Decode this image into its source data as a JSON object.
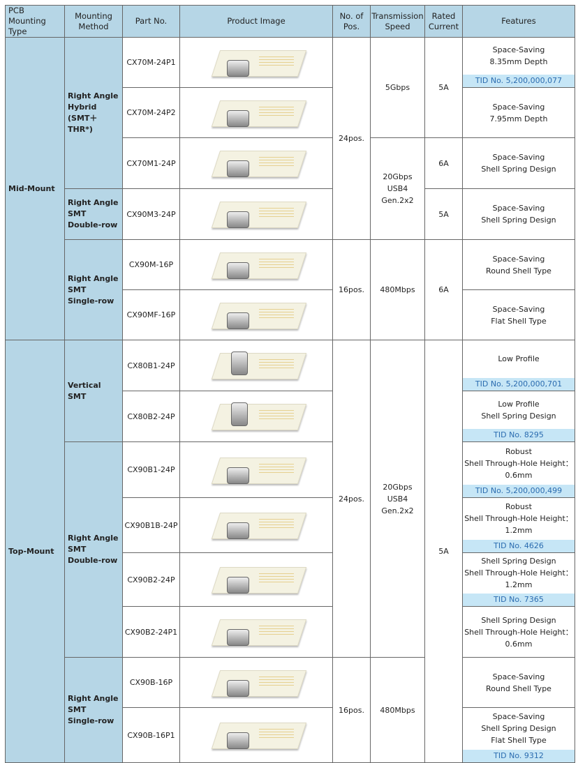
{
  "headers": [
    "PCB Mounting Type",
    "Mounting Method",
    "Part No.",
    "Product Image",
    "No. of Pos.",
    "Transmission Speed",
    "Rated Current",
    "Features"
  ],
  "types": [
    {
      "label": "Mid-Mount",
      "rows": 6
    },
    {
      "label": "Top-Mount",
      "rows": 8
    }
  ],
  "methods": [
    {
      "label": "Right Angle Hybrid (SMT＋THR*)",
      "lines": [
        "Right Angle",
        "Hybrid",
        "(SMT＋THR*)"
      ],
      "rows": 3
    },
    {
      "lines": [
        "Right Angle",
        "SMT",
        "Double-row"
      ],
      "rows": 1
    },
    {
      "lines": [
        "Right Angle",
        "SMT",
        "Single-row"
      ],
      "rows": 2
    },
    {
      "lines": [
        "Vertical",
        "SMT"
      ],
      "rows": 2
    },
    {
      "lines": [
        "Right Angle",
        "SMT",
        "Double-row"
      ],
      "rows": 4
    },
    {
      "lines": [
        "Right Angle",
        "SMT",
        "Single-row"
      ],
      "rows": 2
    }
  ],
  "positions": [
    {
      "label": "24pos.",
      "rows": 4
    },
    {
      "label": "16pos.",
      "rows": 2
    },
    {
      "label": "24pos.",
      "rows": 6
    },
    {
      "label": "16pos.",
      "rows": 2
    }
  ],
  "speeds": [
    {
      "lines": [
        "5Gbps"
      ],
      "rows": 2
    },
    {
      "lines": [
        "20Gbps",
        "USB4",
        "Gen.2x2"
      ],
      "rows": 2
    },
    {
      "lines": [
        "480Mbps"
      ],
      "rows": 2
    },
    {
      "lines": [
        "20Gbps",
        "USB4",
        "Gen.2x2"
      ],
      "rows": 6
    },
    {
      "lines": [
        "480Mbps"
      ],
      "rows": 2
    }
  ],
  "currents": [
    {
      "label": "5A",
      "rows": 2
    },
    {
      "label": "6A",
      "rows": 1
    },
    {
      "label": "5A",
      "rows": 1
    },
    {
      "label": "6A",
      "rows": 2
    },
    {
      "label": "5A",
      "rows": 8
    }
  ],
  "rows": [
    {
      "part": "CX70M-24P1",
      "features": [
        "Space-Saving",
        "8.35mm Depth"
      ],
      "tid": "TID No. 5,200,000,077"
    },
    {
      "part": "CX70M-24P2",
      "features": [
        "Space-Saving",
        "7.95mm Depth"
      ]
    },
    {
      "part": "CX70M1-24P",
      "features": [
        "Space-Saving",
        "Shell Spring Design"
      ]
    },
    {
      "part": "CX90M3-24P",
      "features": [
        "Space-Saving",
        "Shell Spring Design"
      ]
    },
    {
      "part": "CX90M-16P",
      "features": [
        "Space-Saving",
        "Round Shell Type"
      ]
    },
    {
      "part": "CX90MF-16P",
      "features": [
        "Space-Saving",
        "Flat Shell Type"
      ]
    },
    {
      "part": "CX80B1-24P",
      "features": [
        "Low Profile"
      ],
      "tid": "TID No. 5,200,000,701",
      "vertical": true
    },
    {
      "part": "CX80B2-24P",
      "features": [
        "Low Profile",
        "Shell Spring Design"
      ],
      "tid": "TID No. 8295",
      "vertical": true
    },
    {
      "part": "CX90B1-24P",
      "features": [
        "Robust",
        "Shell Through-Hole Height：",
        "0.6mm"
      ],
      "tid": "TID No. 5,200,000,499"
    },
    {
      "part": "CX90B1B-24P",
      "features": [
        "Robust",
        "Shell Through-Hole Height：",
        "1.2mm"
      ],
      "tid": "TID No. 4626"
    },
    {
      "part": "CX90B2-24P",
      "features": [
        "Shell Spring Design",
        "Shell Through-Hole Height：",
        "1.2mm"
      ],
      "tid": "TID No. 7365"
    },
    {
      "part": "CX90B2-24P1",
      "features": [
        "Shell Spring Design",
        "Shell Through-Hole Height：",
        "0.6mm"
      ]
    },
    {
      "part": "CX90B-16P",
      "features": [
        "Space-Saving",
        "Round Shell Type"
      ]
    },
    {
      "part": "CX90B-16P1",
      "features": [
        "Space-Saving",
        "Shell Spring Design",
        "Flat Shell Type"
      ],
      "tid": "TID No. 9312"
    }
  ]
}
